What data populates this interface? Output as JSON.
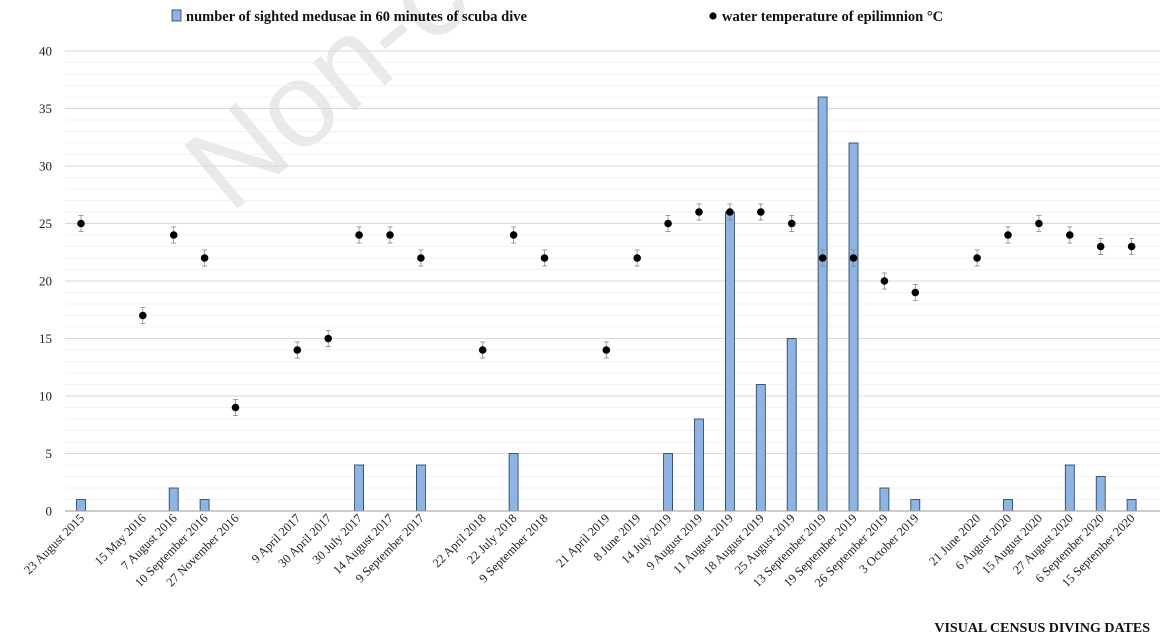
{
  "chart_data": {
    "type": "bar",
    "watermark": "Non-co",
    "xlabel": "VISUAL CENSUS DIVING DATES",
    "ylabel": "",
    "ylim": [
      0,
      40
    ],
    "yticks": [
      0,
      5,
      10,
      15,
      20,
      25,
      30,
      35,
      40
    ],
    "grid": true,
    "legend_position": "top",
    "bar_color": "#8db4e2",
    "bar_edge_color": "#1f3b5c",
    "dot_color": "#000000",
    "errorbar_color": "#888888",
    "x": [
      "23 August 2015",
      "15 May 2016",
      "7 August 2016",
      "10 September 2016",
      "27 November 2016",
      "9 April 2017",
      "30 April 2017",
      "30 July 2017",
      "14 August 2017",
      "9 September 2017",
      "22 April 2018",
      "22 July 2018",
      "9 September 2018",
      "21 April 2019",
      "8 June 2019",
      "14 July 2019",
      "9 August 2019",
      "11 August 2019",
      "18 August 2019",
      "25 August 2019",
      "13 September 2019",
      "19 September 2019",
      "26 September 2019",
      "3 October 2019",
      "21 June 2020",
      "6 August 2020",
      "15 August 2020",
      "27 August 2020",
      "6 September 2020",
      "15 September 2020"
    ],
    "slots": [
      0,
      2,
      3,
      4,
      5,
      7,
      8,
      9,
      10,
      11,
      13,
      14,
      15,
      17,
      18,
      19,
      20,
      21,
      22,
      23,
      24,
      25,
      26,
      27,
      29,
      30,
      31,
      32,
      33,
      34
    ],
    "series": [
      {
        "name": "number of sighted medusae in 60 minutes of scuba dive",
        "kind": "bar",
        "values": [
          1,
          0,
          2,
          1,
          0,
          0,
          0,
          4,
          0,
          4,
          0,
          5,
          0,
          0,
          0,
          5,
          8,
          26,
          11,
          15,
          36,
          32,
          2,
          1,
          0,
          1,
          0,
          4,
          3,
          1
        ]
      },
      {
        "name": "water temperature of epilimnion °C",
        "kind": "scatter",
        "values": [
          25,
          17,
          24,
          22,
          9,
          14,
          15,
          24,
          24,
          22,
          14,
          24,
          22,
          14,
          22,
          25,
          26,
          26,
          26,
          25,
          22,
          22,
          20,
          19,
          22,
          24,
          25,
          24,
          23,
          23
        ],
        "error": 0.7
      }
    ]
  }
}
